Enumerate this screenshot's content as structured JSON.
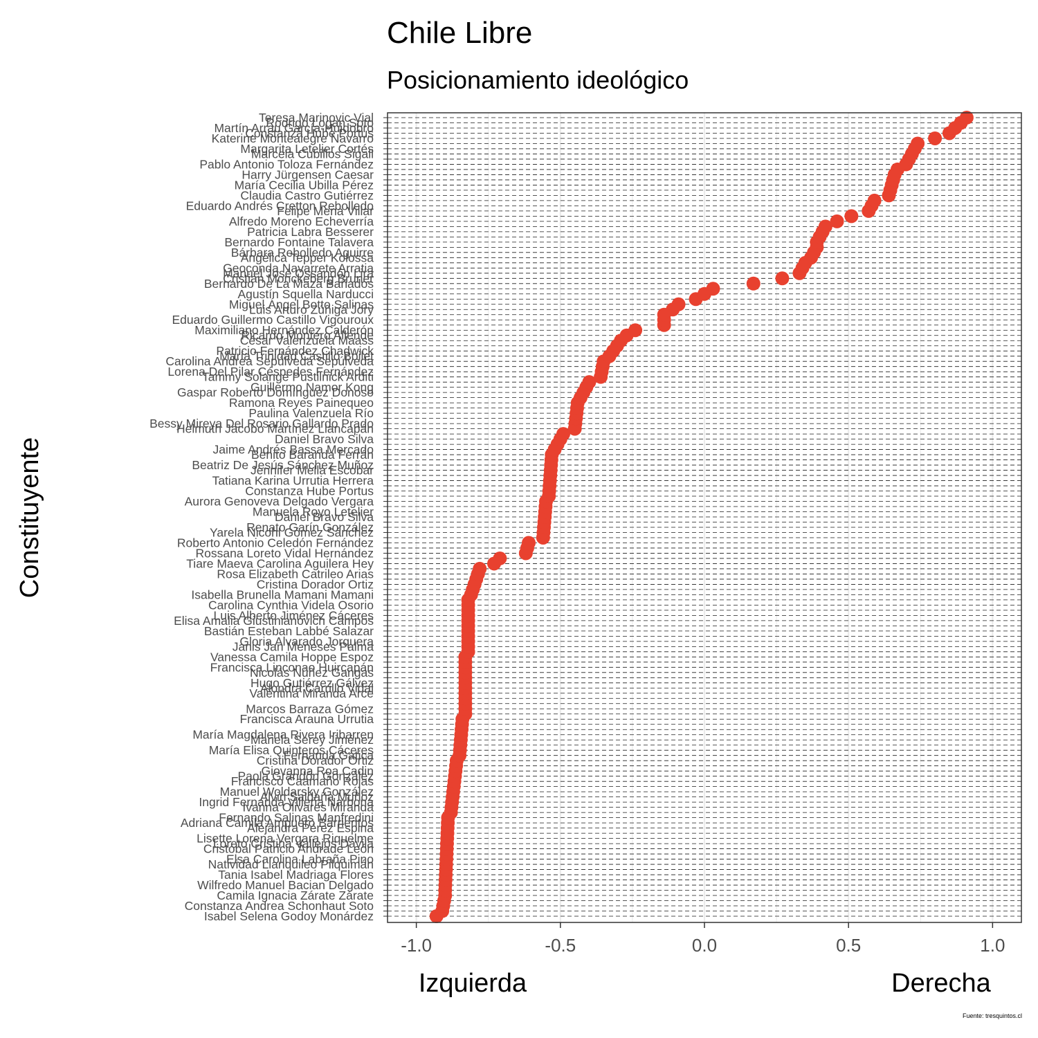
{
  "chart_data": {
    "type": "scatter",
    "title": "Chile Libre",
    "subtitle": "Posicionamiento ideológico",
    "ylabel": "Constituyente",
    "xlabel_left": "Izquierda",
    "xlabel_right": "Derecha",
    "caption": "Fuente: tresquintos.cl",
    "xlim": [
      -1.1,
      1.1
    ],
    "x_ticks": [
      -1.0,
      -0.5,
      0.0,
      0.5,
      1.0
    ],
    "x_tick_labels": [
      "-1.0",
      "-0.5",
      "0.0",
      "0.5",
      "1.0"
    ],
    "grid": true,
    "point_color": "#E8412F",
    "panel_border": "#333333",
    "grid_color": "#ebebeb",
    "row_line_color": "#1a1a1a",
    "n_rows": 155,
    "labeled_rows": [
      {
        "row": 0,
        "name": "Isabel Selena Godoy Monárdez"
      },
      {
        "row": 2,
        "name": "Constanza Andrea Schonhaut Soto"
      },
      {
        "row": 4,
        "name": "Camila Ignacia Zárate Zárate"
      },
      {
        "row": 6,
        "name": "Wilfredo Manuel Bacian Delgado"
      },
      {
        "row": 8,
        "name": "Tania Isabel Madriaga Flores"
      },
      {
        "row": 10,
        "name": "Natividad Llanquileo Pilquimán"
      },
      {
        "row": 11,
        "name": "Elsa Carolina Labraña Pino"
      },
      {
        "row": 13,
        "name": "Cristóbal Patricio Andrade León"
      },
      {
        "row": 14,
        "name": "Loreto Cristina Vallejos Dávila"
      },
      {
        "row": 15,
        "name": "Lisette Lorena Vergara Riquelme"
      },
      {
        "row": 17,
        "name": "Alejandra Pérez Espina"
      },
      {
        "row": 18,
        "name": "Adriana Camila Ampuero Barrientos"
      },
      {
        "row": 19,
        "name": "Fernando Salinas Manfredini"
      },
      {
        "row": 21,
        "name": "Ivanna Olivares Miranda"
      },
      {
        "row": 22,
        "name": "Ingrid Fernanda Villena Narbona"
      },
      {
        "row": 23,
        "name": "Alvin Saldaña Muñoz"
      },
      {
        "row": 24,
        "name": "Manuel Woldarsky González"
      },
      {
        "row": 26,
        "name": "Francisco Caamaño Rojas"
      },
      {
        "row": 27,
        "name": "Paola Grandón González"
      },
      {
        "row": 28,
        "name": "Giovanna Roa Cadin"
      },
      {
        "row": 30,
        "name": "Cristina Dorador Ortiz"
      },
      {
        "row": 31,
        "name": "Fernanda Gatica"
      },
      {
        "row": 32,
        "name": "María Elisa Quinteros Cáceres"
      },
      {
        "row": 34,
        "name": "Mariela Serey Jiménez"
      },
      {
        "row": 35,
        "name": "María Magdalena Rivera Iribarren"
      },
      {
        "row": 38,
        "name": "Francisca Arauna Urrutia"
      },
      {
        "row": 40,
        "name": "Marcos Barraza Gómez"
      },
      {
        "row": 43,
        "name": "Valentina Miranda Arce"
      },
      {
        "row": 44,
        "name": "Alondra Carrillo Vidal"
      },
      {
        "row": 45,
        "name": "Hugo Gutiérrez Gálvez"
      },
      {
        "row": 47,
        "name": "Nicolás Núñez Gangas"
      },
      {
        "row": 48,
        "name": "Francisca Linconao Huircapán"
      },
      {
        "row": 50,
        "name": "Vanessa Camila Hoppe Espoz"
      },
      {
        "row": 52,
        "name": "Janis Jan Meneses Palma"
      },
      {
        "row": 53,
        "name": "Gloria Alvarado Jorquera"
      },
      {
        "row": 55,
        "name": "Bastián Esteban Labbé Salazar"
      },
      {
        "row": 57,
        "name": "Elisa Amalia Giustinianovich Campos"
      },
      {
        "row": 58,
        "name": "Luis Alberto Jiménez Cáceres"
      },
      {
        "row": 60,
        "name": "Carolina Cynthia Videla Osorio"
      },
      {
        "row": 62,
        "name": "Isabella Brunella Mamani Mamani"
      },
      {
        "row": 64,
        "name": "Cristina Dorador Ortiz"
      },
      {
        "row": 66,
        "name": "Rosa Elizabeth Catrileo Arias"
      },
      {
        "row": 68,
        "name": "Tiare Maeva Carolina Aguilera Hey"
      },
      {
        "row": 70,
        "name": "Rossana Loreto Vidal Hernández"
      },
      {
        "row": 72,
        "name": "Roberto Antonio Celedón Fernández"
      },
      {
        "row": 74,
        "name": "Yarela Nicohl Gómez Sánchez"
      },
      {
        "row": 75,
        "name": "Renato Garín González"
      },
      {
        "row": 77,
        "name": "Daniel Bravo Silva"
      },
      {
        "row": 78,
        "name": "Manuela Royo Letelier"
      },
      {
        "row": 80,
        "name": "Aurora Genoveva Delgado Vergara"
      },
      {
        "row": 82,
        "name": "Constanza Hube Portus"
      },
      {
        "row": 84,
        "name": "Tatiana Karina Urrutia Herrera"
      },
      {
        "row": 86,
        "name": "Jennifer Mella Escobar"
      },
      {
        "row": 87,
        "name": "Beatriz De Jesús Sánchez Muñoz"
      },
      {
        "row": 89,
        "name": "Benito Baranda Ferrán"
      },
      {
        "row": 90,
        "name": "Jaime Andrés Bassa Mercado"
      },
      {
        "row": 92,
        "name": "Daniel Bravo Silva"
      },
      {
        "row": 94,
        "name": "Helmuth Jacobo Martínez Llancapán"
      },
      {
        "row": 95,
        "name": "Bessy Mireya Del Rosario Gallardo Prado"
      },
      {
        "row": 97,
        "name": "Paulina Valenzuela Río"
      },
      {
        "row": 99,
        "name": "Ramona Reyes Painequeo"
      },
      {
        "row": 101,
        "name": "Gaspar Roberto Domínguez Donoso"
      },
      {
        "row": 102,
        "name": "Guillermo Namor Kong"
      },
      {
        "row": 104,
        "name": "Tammy Solange Pustilnick Arditi"
      },
      {
        "row": 105,
        "name": "Lorena Del Pilar Céspedes Fernández"
      },
      {
        "row": 107,
        "name": "Carolina Andrea Sepúlveda Sepúlveda"
      },
      {
        "row": 108,
        "name": "María Trinidad Castillo Boilet"
      },
      {
        "row": 109,
        "name": "Patricio Fernández Chadwick"
      },
      {
        "row": 111,
        "name": "César Valenzuela Maass"
      },
      {
        "row": 112,
        "name": "Ricardo Montero Allende"
      },
      {
        "row": 113,
        "name": "Maximiliano Hernández Calderón"
      },
      {
        "row": 115,
        "name": "Eduardo Guillermo Castillo Vigouroux"
      },
      {
        "row": 117,
        "name": "Luis Arturo Zúñiga Jory"
      },
      {
        "row": 118,
        "name": "Miguel Ángel Botto Salinas"
      },
      {
        "row": 120,
        "name": "Agustín Squella Narducci"
      },
      {
        "row": 122,
        "name": "Bernardo De La Maza Bañados"
      },
      {
        "row": 123,
        "name": "Cristian Monckeberg Bruner"
      },
      {
        "row": 124,
        "name": "Manuel José Ossandón Lira"
      },
      {
        "row": 125,
        "name": "Geoconda Navarrete Arratia"
      },
      {
        "row": 127,
        "name": "Angélica Tepper Kolossa"
      },
      {
        "row": 128,
        "name": "Bárbara Rebolledo Aguirre"
      },
      {
        "row": 130,
        "name": "Bernardo Fontaine Talavera"
      },
      {
        "row": 132,
        "name": "Patricia Labra Besserer"
      },
      {
        "row": 134,
        "name": "Alfredo Moreno Echeverría"
      },
      {
        "row": 136,
        "name": "Felipe Mena Villar"
      },
      {
        "row": 137,
        "name": "Eduardo Andrés Cretton Rebolledo"
      },
      {
        "row": 139,
        "name": "Claudia Castro Gutiérrez"
      },
      {
        "row": 141,
        "name": "María Cecilia Ubilla Pérez"
      },
      {
        "row": 143,
        "name": "Harry Jürgensen Caesar"
      },
      {
        "row": 145,
        "name": "Pablo Antonio Toloza Fernández"
      },
      {
        "row": 147,
        "name": "Marcela Cubillos Sigall"
      },
      {
        "row": 148,
        "name": "Margarita Letelier Cortés"
      },
      {
        "row": 150,
        "name": "Katerine Montealegre Navarro"
      },
      {
        "row": 151,
        "name": "Constanza Hube Portus"
      },
      {
        "row": 152,
        "name": "Martín Arrau García-Huidobro"
      },
      {
        "row": 153,
        "name": "Rodrigo Logan Soto"
      },
      {
        "row": 154,
        "name": "Teresa Marinovic Vial"
      }
    ],
    "segments": [
      {
        "from_row": 0,
        "to_row": 0,
        "x_start": -0.93,
        "x_end": -0.93
      },
      {
        "from_row": 1,
        "to_row": 4,
        "x_start": -0.91,
        "x_end": -0.9
      },
      {
        "from_row": 5,
        "to_row": 19,
        "x_start": -0.9,
        "x_end": -0.89
      },
      {
        "from_row": 20,
        "to_row": 30,
        "x_start": -0.88,
        "x_end": -0.86
      },
      {
        "from_row": 31,
        "to_row": 38,
        "x_start": -0.85,
        "x_end": -0.84
      },
      {
        "from_row": 39,
        "to_row": 50,
        "x_start": -0.83,
        "x_end": -0.83
      },
      {
        "from_row": 51,
        "to_row": 61,
        "x_start": -0.82,
        "x_end": -0.82
      },
      {
        "from_row": 62,
        "to_row": 67,
        "x_start": -0.81,
        "x_end": -0.78
      },
      {
        "from_row": 68,
        "to_row": 69,
        "x_start": -0.73,
        "x_end": -0.71
      },
      {
        "from_row": 70,
        "to_row": 72,
        "x_start": -0.62,
        "x_end": -0.61
      },
      {
        "from_row": 73,
        "to_row": 80,
        "x_start": -0.56,
        "x_end": -0.55
      },
      {
        "from_row": 81,
        "to_row": 89,
        "x_start": -0.54,
        "x_end": -0.53
      },
      {
        "from_row": 90,
        "to_row": 93,
        "x_start": -0.52,
        "x_end": -0.49
      },
      {
        "from_row": 94,
        "to_row": 99,
        "x_start": -0.45,
        "x_end": -0.44
      },
      {
        "from_row": 100,
        "to_row": 103,
        "x_start": -0.43,
        "x_end": -0.4
      },
      {
        "from_row": 104,
        "to_row": 107,
        "x_start": -0.36,
        "x_end": -0.35
      },
      {
        "from_row": 108,
        "to_row": 111,
        "x_start": -0.33,
        "x_end": -0.29
      },
      {
        "from_row": 112,
        "to_row": 113,
        "x_start": -0.27,
        "x_end": -0.24
      },
      {
        "from_row": 114,
        "to_row": 116,
        "x_start": -0.14,
        "x_end": -0.14
      },
      {
        "from_row": 117,
        "to_row": 118,
        "x_start": -0.11,
        "x_end": -0.09
      },
      {
        "from_row": 119,
        "to_row": 120,
        "x_start": -0.03,
        "x_end": 0.0
      },
      {
        "from_row": 121,
        "to_row": 121,
        "x_start": 0.03,
        "x_end": 0.03
      },
      {
        "from_row": 122,
        "to_row": 122,
        "x_start": 0.17,
        "x_end": 0.17
      },
      {
        "from_row": 123,
        "to_row": 123,
        "x_start": 0.27,
        "x_end": 0.27
      },
      {
        "from_row": 124,
        "to_row": 126,
        "x_start": 0.33,
        "x_end": 0.35
      },
      {
        "from_row": 127,
        "to_row": 129,
        "x_start": 0.37,
        "x_end": 0.39
      },
      {
        "from_row": 130,
        "to_row": 133,
        "x_start": 0.39,
        "x_end": 0.42
      },
      {
        "from_row": 134,
        "to_row": 135,
        "x_start": 0.46,
        "x_end": 0.51
      },
      {
        "from_row": 136,
        "to_row": 138,
        "x_start": 0.57,
        "x_end": 0.59
      },
      {
        "from_row": 139,
        "to_row": 143,
        "x_start": 0.64,
        "x_end": 0.66
      },
      {
        "from_row": 144,
        "to_row": 145,
        "x_start": 0.67,
        "x_end": 0.7
      },
      {
        "from_row": 146,
        "to_row": 149,
        "x_start": 0.71,
        "x_end": 0.74
      },
      {
        "from_row": 150,
        "to_row": 151,
        "x_start": 0.8,
        "x_end": 0.85
      },
      {
        "from_row": 152,
        "to_row": 153,
        "x_start": 0.87,
        "x_end": 0.89
      },
      {
        "from_row": 154,
        "to_row": 154,
        "x_start": 0.91,
        "x_end": 0.91
      }
    ]
  }
}
